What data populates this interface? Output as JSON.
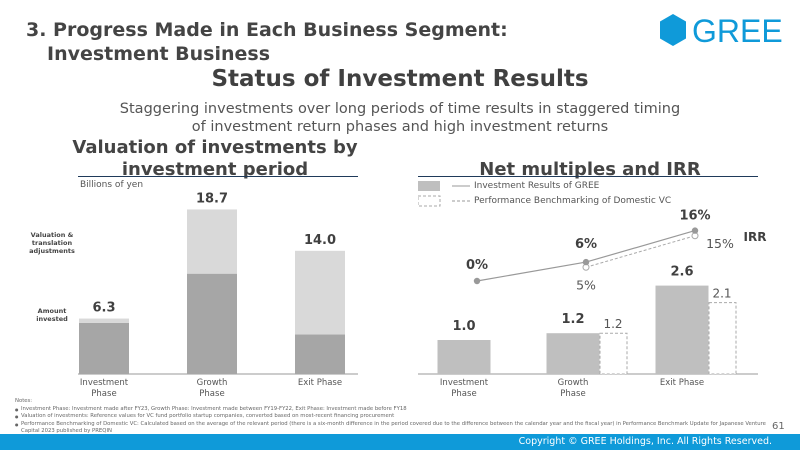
{
  "header": {
    "line1": "3. Progress Made in Each Business Segment:",
    "line2": "Investment Business"
  },
  "logo": {
    "text": "GREE",
    "color": "#0f9ad9"
  },
  "main_title": "Status of Investment Results",
  "subtitle": {
    "line1": "Staggering investments over long periods of time results in staggered timing",
    "line2": "of investment return phases and high investment returns"
  },
  "left_section": {
    "title_line1": "Valuation of investments by",
    "title_line2": "investment period",
    "unit": "Billions of yen"
  },
  "right_section": {
    "title": "Net multiples and IRR",
    "legend": {
      "gree": "Investment Results of GREE",
      "benchmark": "Performance Benchmarking of Domestic VC"
    }
  },
  "chart_data": [
    {
      "type": "bar",
      "stacked": true,
      "title": "Valuation of investments by investment period",
      "ylabel": "Billions of yen",
      "categories": [
        "Investment Phase",
        "Growth Phase",
        "Exit Phase"
      ],
      "series": [
        {
          "name": "Amount invested",
          "values": [
            5.8,
            11.4,
            4.5
          ],
          "color": "#a6a6a6"
        },
        {
          "name": "Valuation & translation adjustments",
          "values": [
            0.5,
            7.3,
            9.5
          ],
          "color": "#d9d9d9"
        }
      ],
      "totals": [
        6.3,
        18.7,
        14.0
      ],
      "total_labels": [
        "6.3",
        "18.7",
        "14.0"
      ],
      "ylim": [
        0,
        20
      ],
      "annotations": {
        "valuation_line1": "Valuation &",
        "valuation_line2": "translation",
        "valuation_line3": "adjustments",
        "amount_line1": "Amount",
        "amount_line2": "invested"
      }
    },
    {
      "type": "bar+line",
      "title": "Net multiples and IRR",
      "categories": [
        "Investment Phase",
        "Growth Phase",
        "Exit Phase"
      ],
      "multiples": {
        "gree": [
          1.0,
          1.2,
          2.6
        ],
        "gree_labels": [
          "1.0",
          "1.2",
          "2.6"
        ],
        "benchmark": [
          null,
          1.2,
          2.1
        ],
        "benchmark_labels": [
          "",
          "1.2",
          "2.1"
        ]
      },
      "irr": {
        "label": "IRR",
        "gree": [
          0,
          6,
          16
        ],
        "gree_labels": [
          "0%",
          "6%",
          "16%"
        ],
        "benchmark": [
          null,
          5,
          15
        ],
        "benchmark_labels": [
          "",
          "5%",
          "15%"
        ]
      },
      "ylim_multiples": [
        0,
        3.5
      ],
      "ylim_irr": [
        -30,
        20
      ]
    }
  ],
  "notes": {
    "title": "Notes:",
    "items": [
      "Investment Phase: Investment made after FY23, Growth Phase: Investment made between FY19-FY22, Exit Phase: Investment made before FY18",
      "Valuation of investments: Reference values for VC fund portfolio startup companies, converted based on most-recent financing procurement",
      "Performance Benchmarking of Domestic VC: Calculated based on the average of the relevant period (there is a six-month difference in the period covered due to the difference between the calendar year and the fiscal year) in Performance Benchmark Update for Japanese Venture Capital 2023 published by PREQIN"
    ]
  },
  "page_number": "61",
  "footer": "Copyright © GREE Holdings, Inc. All Rights Reserved."
}
